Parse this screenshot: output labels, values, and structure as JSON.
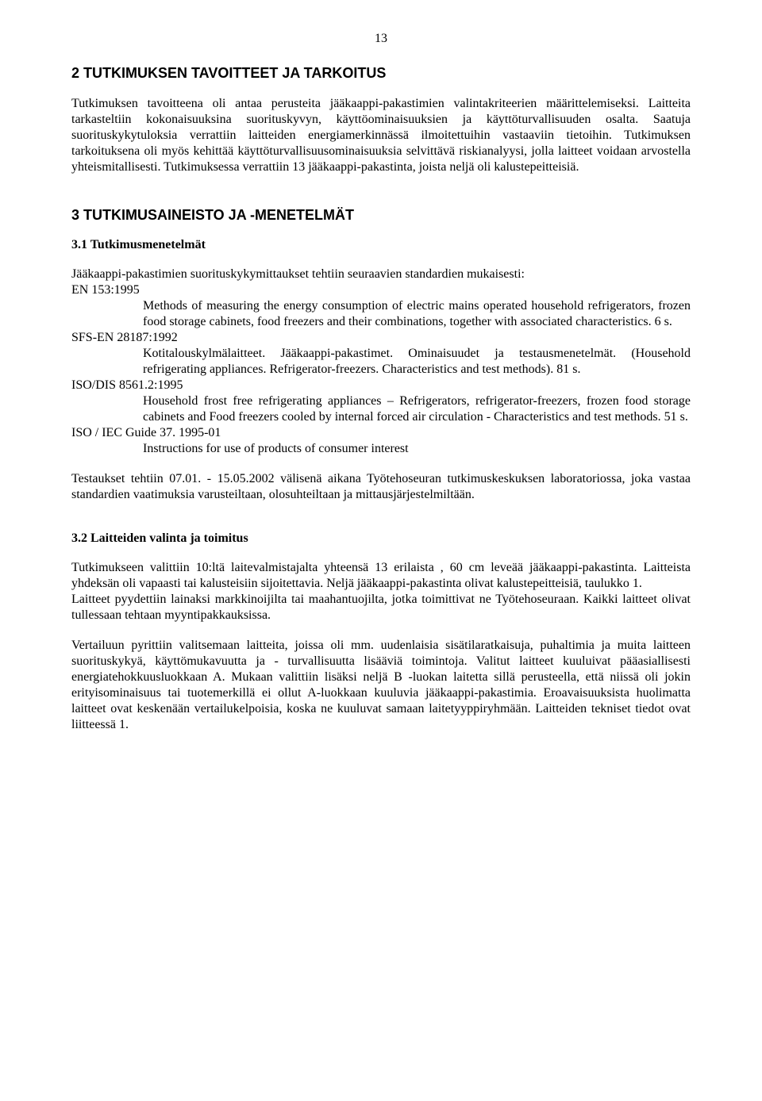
{
  "page_number": "13",
  "section2": {
    "heading": "2 TUTKIMUKSEN TAVOITTEET JA TARKOITUS",
    "paragraph": "Tutkimuksen tavoitteena oli antaa perusteita jääkaappi-pakastimien valintakriteerien määrittelemiseksi. Laitteita tarkasteltiin kokonaisuuksina suorituskyvyn, käyttöominaisuuksien ja käyttöturvallisuuden osalta. Saatuja suorituskykytuloksia verrattiin laitteiden energiamerkinnässä ilmoitettuihin vastaaviin tietoihin. Tutkimuksen tarkoituksena oli myös kehittää käyttöturvallisuusominaisuuksia selvittävä riskianalyysi, jolla laitteet voidaan arvostella yhteismitallisesti. Tutkimuksessa verrattiin 13 jääkaappi-pakastinta, joista neljä oli kalustepeitteisiä."
  },
  "section3": {
    "heading": "3 TUTKIMUSAINEISTO JA -MENETELMÄT",
    "sub31": {
      "heading": "3.1 Tutkimusmenetelmät",
      "intro": "Jääkaappi-pakastimien suorituskykymittaukset tehtiin seuraavien standardien mukaisesti:",
      "standards": [
        {
          "code": "EN 153:1995",
          "desc": "Methods of measuring the energy consumption of electric mains operated household refrigerators, frozen food storage cabinets, food freezers and their combinations, together with associated characteristics. 6 s."
        },
        {
          "code": "SFS-EN 28187:1992",
          "desc": "Kotitalouskylmälaitteet. Jääkaappi-pakastimet. Ominaisuudet ja testausmenetelmät. (Household refrigerating appliances. Refrigerator-freezers. Characteristics and test methods). 81 s."
        },
        {
          "code": "ISO/DIS 8561.2:1995",
          "desc": "Household frost free refrigerating appliances – Refrigerators, refrigerator-freezers, frozen food storage cabinets and Food freezers cooled by internal forced air circulation - Characteristics and test methods. 51 s."
        },
        {
          "code": "ISO / IEC Guide 37. 1995-01",
          "desc": "Instructions for use of products of consumer interest"
        }
      ],
      "after": "Testaukset tehtiin 07.01. - 15.05.2002 välisenä aikana Työtehoseuran tutkimuskeskuksen laboratoriossa, joka vastaa standardien vaatimuksia varusteiltaan, olosuhteiltaan ja mittausjärjestelmiltään."
    },
    "sub32": {
      "heading": "3.2 Laitteiden valinta ja toimitus",
      "p1": "Tutkimukseen valittiin 10:ltä laitevalmistajalta yhteensä 13 erilaista , 60 cm leveää jääkaappi-pakastinta. Laitteista yhdeksän oli vapaasti tai kalusteisiin sijoitettavia. Neljä jääkaappi-pakastinta olivat kalustepeitteisiä, taulukko 1.",
      "p2": "Laitteet pyydettiin lainaksi markkinoijilta tai maahantuojilta, jotka toimittivat ne Työtehoseuraan. Kaikki laitteet olivat tullessaan tehtaan myyntipakkauksissa.",
      "p3": "Vertailuun pyrittiin valitsemaan laitteita, joissa oli mm. uudenlaisia sisätilaratkaisuja, puhaltimia ja muita laitteen suorituskykyä, käyttömukavuutta ja - turvallisuutta lisääviä toimintoja. Valitut laitteet kuuluivat pääasiallisesti energiatehokkuusluokkaan A. Mukaan valittiin lisäksi neljä B -luokan laitetta sillä perusteella, että niissä oli jokin erityisominaisuus tai tuotemerkillä ei ollut A-luokkaan kuuluvia jääkaappi-pakastimia. Eroavaisuuksista huolimatta laitteet ovat keskenään vertailukelpoisia, koska ne kuuluvat samaan laitetyyppiryhmään. Laitteiden tekniset tiedot ovat liitteessä 1."
    }
  }
}
